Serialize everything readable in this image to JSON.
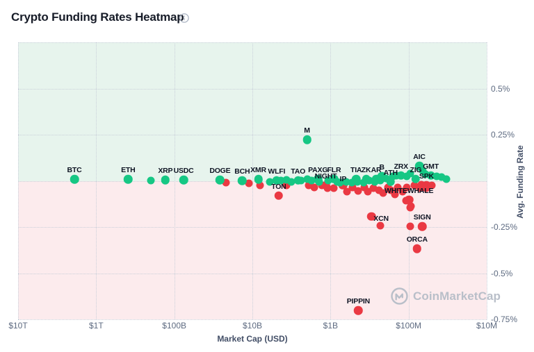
{
  "header": {
    "title": "Crypto Funding Rates Heatmap",
    "info_icon": "info-icon"
  },
  "watermark": {
    "text": "CoinMarketCap",
    "logo": "coinmarketcap-logo"
  },
  "chart_data": {
    "type": "scatter",
    "title": "Crypto Funding Rates Heatmap",
    "xlabel": "Market Cap (USD)",
    "ylabel": "Avg. Funding Rate",
    "x_axis": {
      "scale": "log-reversed",
      "ticks": [
        "$10T",
        "$1T",
        "$100B",
        "$10B",
        "$1B",
        "$100M",
        "$10M"
      ],
      "tick_values": [
        10000000000000.0,
        1000000000000.0,
        100000000000.0,
        10000000000.0,
        1000000000.0,
        100000000.0,
        10000000.0
      ]
    },
    "y_axis": {
      "unit": "%",
      "range": [
        -0.75,
        0.75
      ],
      "ticks": [
        "0.5%",
        "0.25%",
        "-0.25%",
        "-0.5%",
        "-0.75%"
      ],
      "tick_values": [
        0.5,
        0.25,
        -0.25,
        -0.5,
        -0.75
      ],
      "grid_values": [
        0.75,
        0.5,
        0.25,
        0,
        -0.25,
        -0.5,
        -0.75
      ]
    },
    "legend": "none",
    "grid": "dotted",
    "colors": {
      "positive": "#16c784",
      "negative": "#ea3943",
      "positive_bg": "#e7f4ed",
      "negative_bg": "#fcebed",
      "grid": "#c9cfd9"
    },
    "points": [
      {
        "label": "BTC",
        "mcap": 1900000000000.0,
        "rate": 0.008,
        "color": "green"
      },
      {
        "label": "ETH",
        "mcap": 390000000000.0,
        "rate": 0.008,
        "color": "green"
      },
      {
        "label": "XRP",
        "mcap": 130000000000.0,
        "rate": 0.004,
        "color": "green"
      },
      {
        "label": "USDC",
        "mcap": 76000000000.0,
        "rate": 0.004,
        "color": "green"
      },
      {
        "label": "DOGE",
        "mcap": 26000000000.0,
        "rate": 0.004,
        "color": "green"
      },
      {
        "label": "BCH",
        "mcap": 13500000000.0,
        "rate": 0.001,
        "color": "green"
      },
      {
        "label": "XMR",
        "mcap": 8400000000.0,
        "rate": 0.008,
        "color": "green"
      },
      {
        "label": "WLFI",
        "mcap": 4900000000.0,
        "rate": 0.002,
        "color": "green"
      },
      {
        "label": "TAO",
        "mcap": 2600000000.0,
        "rate": 0.002,
        "color": "green"
      },
      {
        "label": "M",
        "mcap": 2000000000.0,
        "rate": 0.222,
        "color": "green"
      },
      {
        "label": "PAXG",
        "mcap": 1450000000.0,
        "rate": 0.008,
        "color": "green"
      },
      {
        "label": "FLR",
        "mcap": 900000000.0,
        "rate": 0.011,
        "color": "green"
      },
      {
        "label": "TIA",
        "mcap": 470000000.0,
        "rate": 0.008,
        "color": "green"
      },
      {
        "label": "ZK",
        "mcap": 350000000.0,
        "rate": 0.008,
        "color": "green"
      },
      {
        "label": "AR",
        "mcap": 260000000.0,
        "rate": 0.011,
        "color": "green"
      },
      {
        "label": "B",
        "mcap": 220000000.0,
        "rate": 0.026,
        "color": "green"
      },
      {
        "label": "ATH",
        "mcap": 170000000.0,
        "rate": -0.004,
        "color": "green"
      },
      {
        "label": "ZRX",
        "mcap": 125000000.0,
        "rate": 0.03,
        "color": "green"
      },
      {
        "label": "AIC",
        "mcap": 73000000.0,
        "rate": 0.079,
        "color": "green"
      },
      {
        "label": "ZIG",
        "mcap": 81000000.0,
        "rate": 0.011,
        "color": "green"
      },
      {
        "label": "GMT",
        "mcap": 52000000.0,
        "rate": 0.03,
        "color": "green"
      },
      {
        "label": "NIGHT",
        "mcap": 1150000000.0,
        "rate": -0.023,
        "color": "red"
      },
      {
        "label": "IP",
        "mcap": 690000000.0,
        "rate": -0.023,
        "color": "red",
        "ldy": 4
      },
      {
        "label": "TON",
        "mcap": 4600000000.0,
        "rate": -0.079,
        "color": "red"
      },
      {
        "label": "SPK",
        "mcap": 59000000.0,
        "rate": -0.026,
        "color": "red"
      },
      {
        "label": "WHITEWHALE",
        "mcap": 99000000.0,
        "rate": -0.102,
        "color": "red"
      },
      {
        "label": "XCN",
        "mcap": 300000000.0,
        "rate": -0.192,
        "color": "red",
        "ldx": 14,
        "ldy": 16
      },
      {
        "label": "SIGN",
        "mcap": 67000000.0,
        "rate": -0.248,
        "color": "red"
      },
      {
        "label": "ORCA",
        "mcap": 78000000.0,
        "rate": -0.368,
        "color": "red"
      },
      {
        "label": "PIPPIN",
        "mcap": 440000000.0,
        "rate": -0.703,
        "color": "red"
      },
      {
        "mcap": 200000000000.0,
        "rate": 0.001,
        "color": "green"
      },
      {
        "mcap": 6000000000.0,
        "rate": -0.004,
        "color": "green"
      },
      {
        "mcap": 4300000000.0,
        "rate": 0.001,
        "color": "green"
      },
      {
        "mcap": 3700000000.0,
        "rate": 0.004,
        "color": "green"
      },
      {
        "mcap": 3200000000.0,
        "rate": -0.004,
        "color": "green"
      },
      {
        "mcap": 2400000000.0,
        "rate": 0.001,
        "color": "green"
      },
      {
        "mcap": 2000000000.0,
        "rate": 0.008,
        "color": "green"
      },
      {
        "mcap": 1750000000.0,
        "rate": 0.001,
        "color": "green"
      },
      {
        "mcap": 1400000000.0,
        "rate": -0.004,
        "color": "green"
      },
      {
        "mcap": 1070000000.0,
        "rate": 0.001,
        "color": "green"
      },
      {
        "mcap": 820000000.0,
        "rate": -0.004,
        "color": "green"
      },
      {
        "mcap": 750000000.0,
        "rate": -0.011,
        "color": "green"
      },
      {
        "mcap": 630000000.0,
        "rate": -0.004,
        "color": "green"
      },
      {
        "mcap": 530000000.0,
        "rate": -0.008,
        "color": "green"
      },
      {
        "mcap": 450000000.0,
        "rate": -0.004,
        "color": "green"
      },
      {
        "mcap": 380000000.0,
        "rate": -0.008,
        "color": "green"
      },
      {
        "mcap": 320000000.0,
        "rate": 0.001,
        "color": "green"
      },
      {
        "mcap": 270000000.0,
        "rate": -0.004,
        "color": "green"
      },
      {
        "mcap": 230000000.0,
        "rate": 0.001,
        "color": "green"
      },
      {
        "mcap": 195000000.0,
        "rate": 0.015,
        "color": "green"
      },
      {
        "mcap": 160000000.0,
        "rate": 0.023,
        "color": "green"
      },
      {
        "mcap": 143000000.0,
        "rate": 0.03,
        "color": "green"
      },
      {
        "mcap": 106000000.0,
        "rate": 0.026,
        "color": "green"
      },
      {
        "mcap": 95000000.0,
        "rate": 0.041,
        "color": "green"
      },
      {
        "mcap": 66000000.0,
        "rate": 0.053,
        "color": "green"
      },
      {
        "mcap": 61000000.0,
        "rate": 0.034,
        "color": "green"
      },
      {
        "mcap": 44000000.0,
        "rate": 0.023,
        "color": "green"
      },
      {
        "mcap": 38000000.0,
        "rate": 0.019,
        "color": "green"
      },
      {
        "mcap": 33000000.0,
        "rate": 0.011,
        "color": "green"
      },
      {
        "mcap": 22000000000.0,
        "rate": -0.011,
        "color": "red"
      },
      {
        "mcap": 11000000000.0,
        "rate": -0.015,
        "color": "red"
      },
      {
        "mcap": 8000000000.0,
        "rate": -0.026,
        "color": "red"
      },
      {
        "mcap": 3700000000.0,
        "rate": -0.023,
        "color": "red"
      },
      {
        "mcap": 1900000000.0,
        "rate": -0.026,
        "color": "red"
      },
      {
        "mcap": 1600000000.0,
        "rate": -0.034,
        "color": "red"
      },
      {
        "mcap": 1300000000.0,
        "rate": -0.026,
        "color": "red"
      },
      {
        "mcap": 1100000000.0,
        "rate": -0.041,
        "color": "red"
      },
      {
        "mcap": 900000000.0,
        "rate": -0.041,
        "color": "red"
      },
      {
        "mcap": 610000000.0,
        "rate": -0.06,
        "color": "red"
      },
      {
        "mcap": 520000000.0,
        "rate": -0.034,
        "color": "red"
      },
      {
        "mcap": 440000000.0,
        "rate": -0.053,
        "color": "red"
      },
      {
        "mcap": 370000000.0,
        "rate": -0.034,
        "color": "red"
      },
      {
        "mcap": 330000000.0,
        "rate": -0.06,
        "color": "red"
      },
      {
        "mcap": 280000000.0,
        "rate": -0.041,
        "color": "red"
      },
      {
        "mcap": 240000000.0,
        "rate": -0.049,
        "color": "red"
      },
      {
        "mcap": 210000000.0,
        "rate": -0.064,
        "color": "red"
      },
      {
        "mcap": 185000000.0,
        "rate": -0.034,
        "color": "red"
      },
      {
        "mcap": 170000000.0,
        "rate": -0.049,
        "color": "red"
      },
      {
        "mcap": 150000000.0,
        "rate": -0.075,
        "color": "red"
      },
      {
        "mcap": 137000000.0,
        "rate": -0.034,
        "color": "red"
      },
      {
        "mcap": 120000000.0,
        "rate": -0.06,
        "color": "red"
      },
      {
        "mcap": 105000000.0,
        "rate": -0.034,
        "color": "red"
      },
      {
        "mcap": 94000000.0,
        "rate": -0.139,
        "color": "red"
      },
      {
        "mcap": 85000000.0,
        "rate": -0.026,
        "color": "red"
      },
      {
        "mcap": 72000000.0,
        "rate": -0.041,
        "color": "red"
      },
      {
        "mcap": 68000000.0,
        "rate": -0.019,
        "color": "red"
      },
      {
        "mcap": 60000000.0,
        "rate": -0.041,
        "color": "red"
      },
      {
        "mcap": 50000000.0,
        "rate": -0.023,
        "color": "red"
      },
      {
        "mcap": 230000000.0,
        "rate": -0.244,
        "color": "red"
      },
      {
        "mcap": 96000000.0,
        "rate": -0.248,
        "color": "red"
      },
      {
        "mcap": 95000000.0,
        "rate": -0.143,
        "color": "red"
      },
      {
        "mcap": 108000000.0,
        "rate": -0.109,
        "color": "red"
      }
    ]
  }
}
